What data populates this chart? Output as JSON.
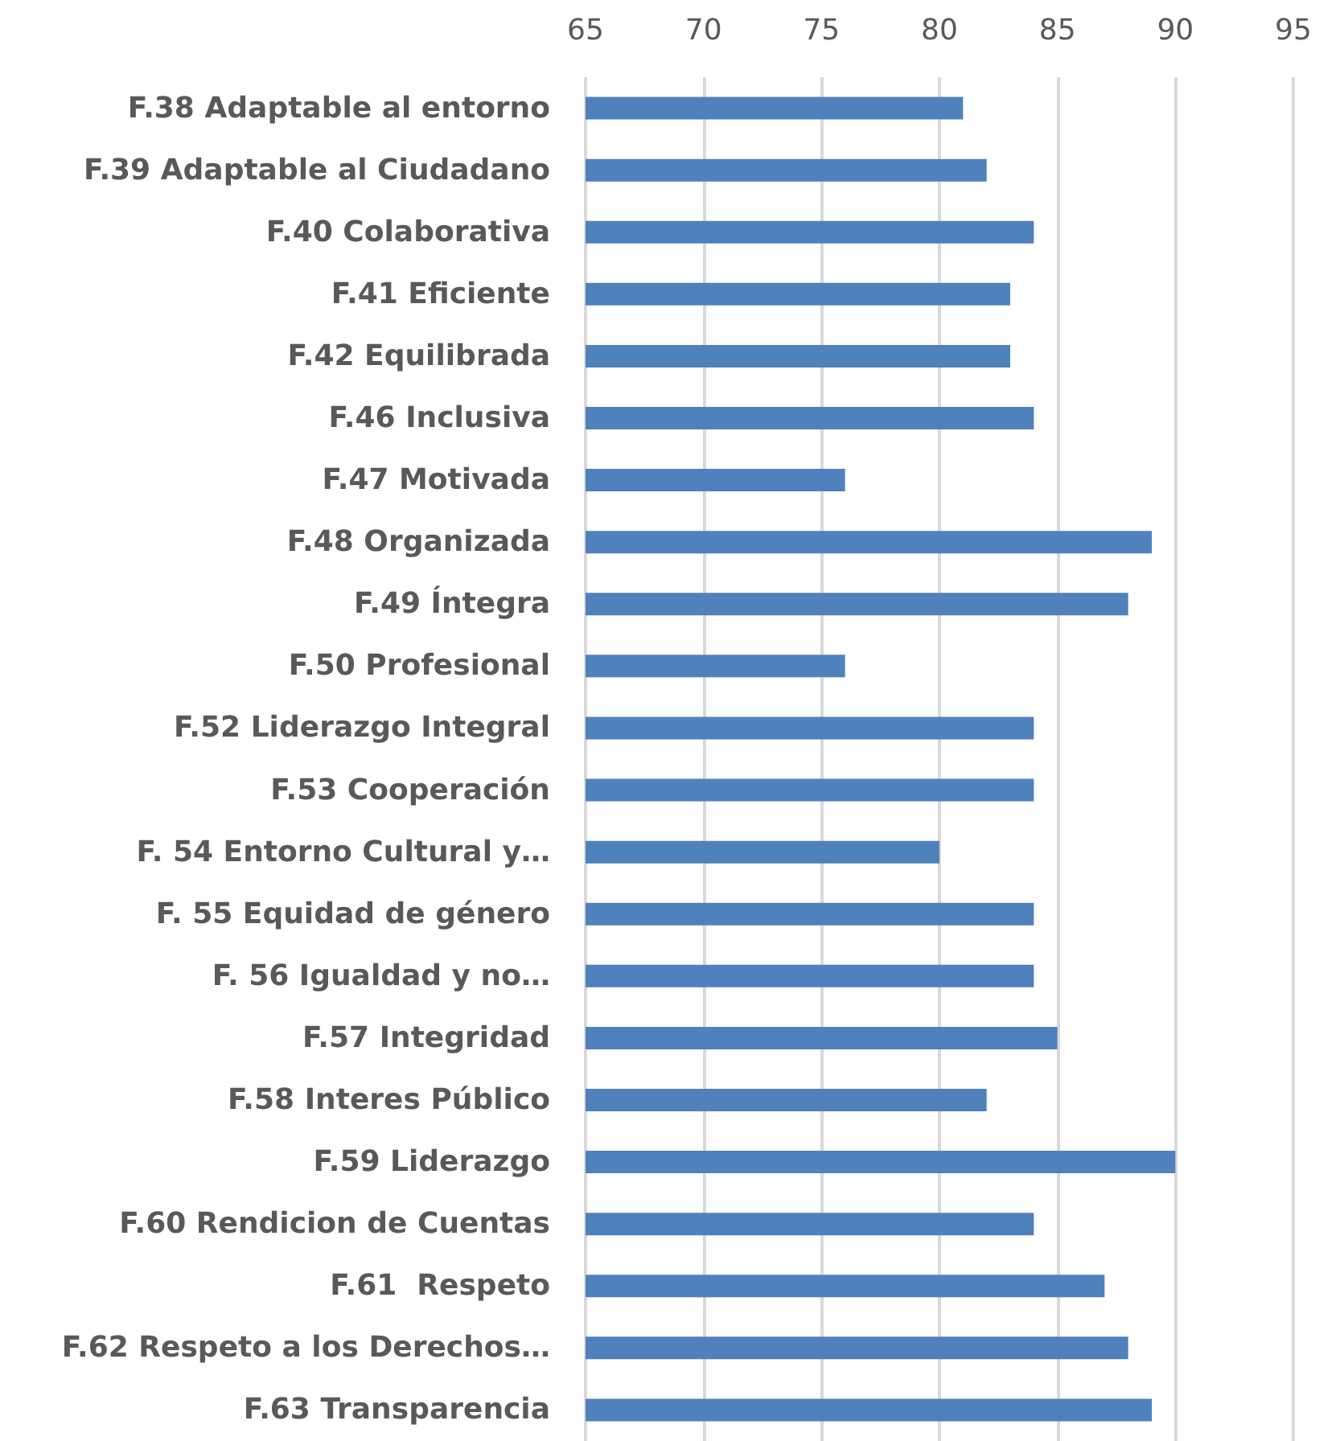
{
  "chart_data": {
    "type": "bar",
    "orientation": "horizontal",
    "categories": [
      "F.38 Adaptable al entorno",
      "F.39 Adaptable al Ciudadano",
      "F.40 Colaborativa",
      "F.41 Eficiente",
      "F.42 Equilibrada",
      "F.46 Inclusiva",
      "F.47 Motivada",
      "F.48 Organizada",
      "F.49 Íntegra",
      "F.50 Profesional",
      "F.52 Liderazgo Integral",
      "F.53 Cooperación",
      "F. 54 Entorno Cultural y…",
      "F. 55 Equidad de género",
      "F. 56 Igualdad y no…",
      "F.57 Integridad",
      "F.58 Interes Público",
      "F.59 Liderazgo",
      "F.60 Rendicion de Cuentas",
      "F.61  Respeto",
      "F.62 Respeto a los Derechos…",
      "F.63 Transparencia"
    ],
    "values": [
      81,
      82,
      84,
      83,
      83,
      84,
      76,
      89,
      88,
      76,
      84,
      84,
      80,
      84,
      84,
      85,
      82,
      90,
      84,
      87,
      88,
      89
    ],
    "color": "#4f81bd",
    "xlim": [
      65,
      95
    ],
    "xticks": [
      65,
      70,
      75,
      80,
      85,
      90,
      95
    ],
    "grid": "x"
  }
}
